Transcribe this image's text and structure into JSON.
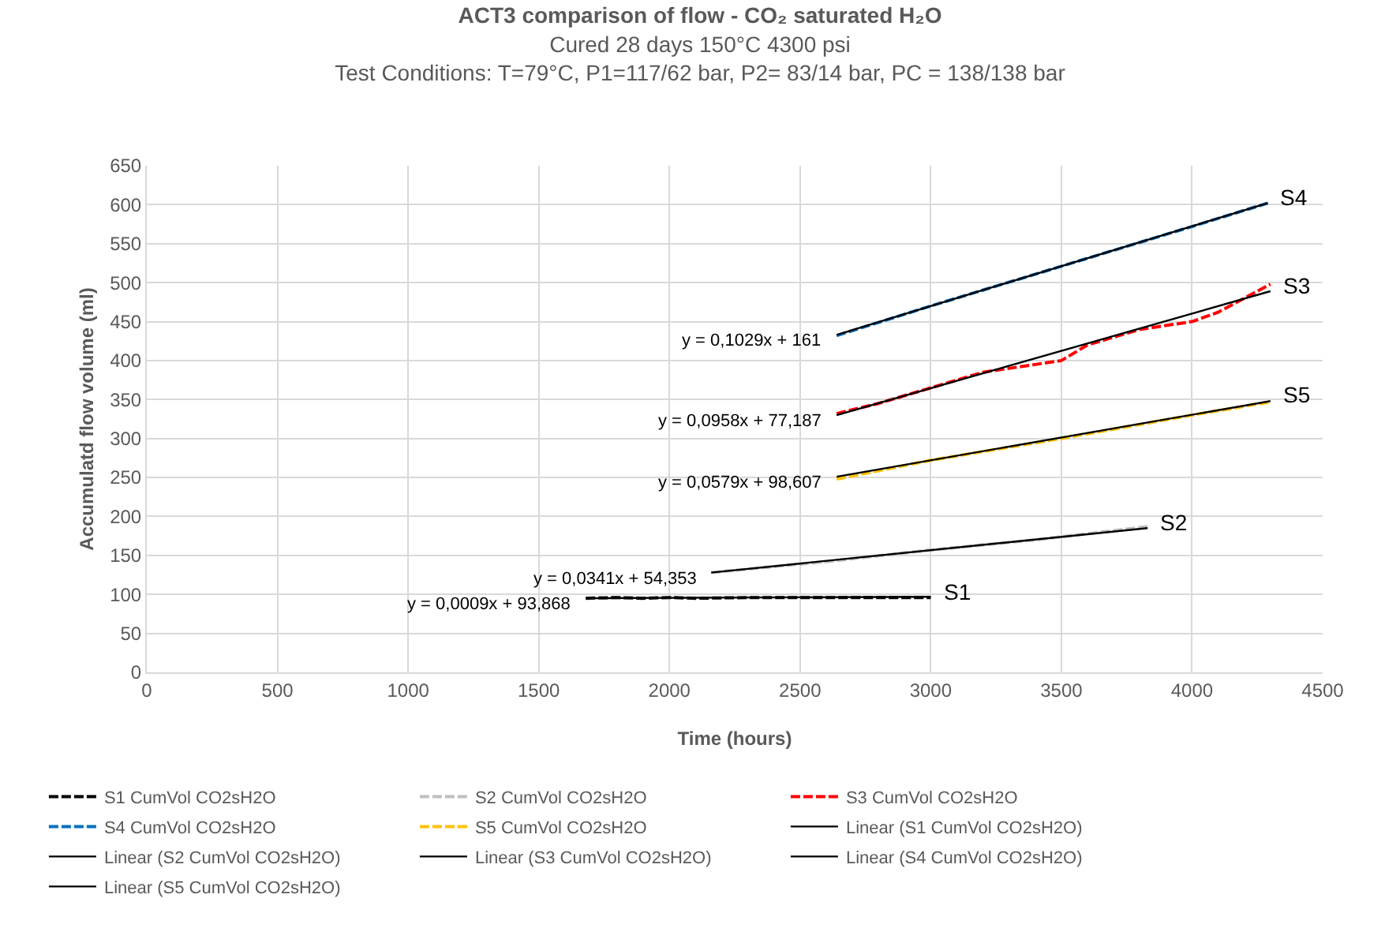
{
  "chart_data": {
    "type": "line",
    "title": "ACT3 comparison of flow - CO₂ saturated H₂O",
    "subtitle": "Cured 28 days 150°C 4300 psi\nTest Conditions: T=79°C, P1=117/62 bar, P2= 83/14 bar, PC = 138/138 bar",
    "xlabel": "Time (hours)",
    "ylabel": "Accumulatd flow volume (ml)",
    "xlim": [
      0,
      4500
    ],
    "xticks": [
      0,
      500,
      1000,
      1500,
      2000,
      2500,
      3000,
      3500,
      4000,
      4500
    ],
    "ylim": [
      0,
      650
    ],
    "yticks": [
      0,
      50,
      100,
      150,
      200,
      250,
      300,
      350,
      400,
      450,
      500,
      550,
      600,
      650
    ],
    "grid": true,
    "legend": "bottom",
    "marker": "none",
    "series": [
      {
        "name": "S1 CumVol CO2sH2O",
        "color": "#000000",
        "line_style": "dashed",
        "x": [
          1680,
          1800,
          1900,
          2000,
          2100,
          2300,
          2600,
          3000
        ],
        "values": [
          95,
          96,
          95,
          96,
          95,
          96,
          96,
          96
        ]
      },
      {
        "name": "S2 CumVol CO2sH2O",
        "color": "#bfbfbf",
        "line_style": "dashed",
        "x": [
          2160,
          2600,
          3000,
          3400,
          3830
        ],
        "values": [
          128,
          142,
          157,
          170,
          187
        ]
      },
      {
        "name": "S3 CumVol CO2sH2O",
        "color": "#ff0000",
        "line_style": "dashed",
        "x": [
          2640,
          2800,
          3000,
          3200,
          3400,
          3500,
          3600,
          3800,
          4000,
          4100,
          4200,
          4300
        ],
        "values": [
          332,
          345,
          365,
          385,
          395,
          400,
          420,
          440,
          450,
          462,
          480,
          498
        ]
      },
      {
        "name": "S4 CumVol CO2sH2O",
        "color": "#0070c0",
        "line_style": "dashed",
        "x": [
          2640,
          3000,
          3500,
          4000,
          4290
        ],
        "values": [
          432,
          470,
          521,
          572,
          602
        ]
      },
      {
        "name": "S5 CumVol CO2sH2O",
        "color": "#ffc000",
        "line_style": "dashed",
        "x": [
          2640,
          3000,
          3500,
          4000,
          4300
        ],
        "values": [
          248,
          272,
          300,
          330,
          347
        ]
      },
      {
        "name": "Linear (S1 CumVol CO2sH2O)",
        "color": "#000000",
        "line_style": "solid",
        "x": [
          1680,
          3000
        ],
        "values": [
          95,
          97
        ]
      },
      {
        "name": "Linear (S2 CumVol CO2sH2O)",
        "color": "#000000",
        "line_style": "solid",
        "x": [
          2160,
          3830
        ],
        "values": [
          128,
          185
        ]
      },
      {
        "name": "Linear (S3 CumVol CO2sH2O)",
        "color": "#000000",
        "line_style": "solid",
        "x": [
          2640,
          4300
        ],
        "values": [
          330,
          489
        ]
      },
      {
        "name": "Linear (S4 CumVol CO2sH2O)",
        "color": "#000000",
        "line_style": "solid",
        "x": [
          2640,
          4290
        ],
        "values": [
          433,
          602
        ]
      },
      {
        "name": "Linear (S5 CumVol CO2sH2O)",
        "color": "#000000",
        "line_style": "solid",
        "x": [
          2640,
          4300
        ],
        "values": [
          251,
          348
        ]
      }
    ],
    "annotations": [
      {
        "text": "y = 0,1029x + 161",
        "x": 2640,
        "y": 433
      },
      {
        "text": "y = 0,0958x + 77,187",
        "x": 2640,
        "y": 330
      },
      {
        "text": "y = 0,0579x + 98,607",
        "x": 2640,
        "y": 251
      },
      {
        "text": "y = 0,0341x + 54,353",
        "x": 2160,
        "y": 128
      },
      {
        "text": "y = 0,0009x + 93,868",
        "x": 1680,
        "y": 95
      },
      {
        "text": "S4",
        "x": 4290,
        "y": 602
      },
      {
        "text": "S3",
        "x": 4300,
        "y": 489
      },
      {
        "text": "S5",
        "x": 4300,
        "y": 348
      },
      {
        "text": "S2",
        "x": 3830,
        "y": 185
      },
      {
        "text": "S1",
        "x": 3000,
        "y": 96
      }
    ]
  }
}
